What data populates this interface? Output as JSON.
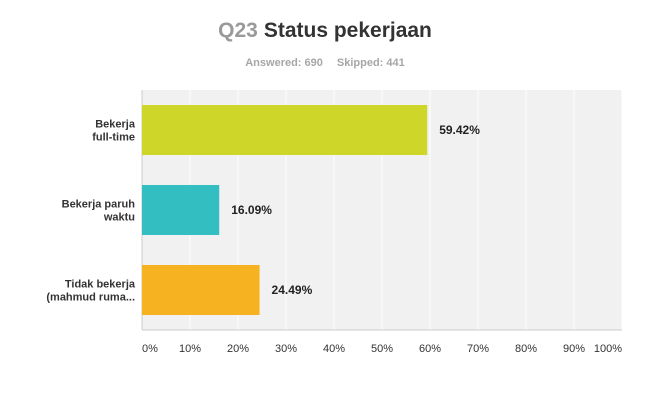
{
  "question": {
    "number": "Q23",
    "title": "Status pekerjaan"
  },
  "stats": {
    "answered": "Answered: 690",
    "skipped": "Skipped: 441"
  },
  "colors": {
    "grid_bg": "#f1f1f1",
    "gridline": "#ffffff",
    "axis": "#cccccc"
  },
  "chart_data": {
    "type": "bar",
    "orientation": "horizontal",
    "categories": [
      [
        "Bekerja",
        "full-time"
      ],
      [
        "Bekerja paruh",
        "waktu"
      ],
      [
        "Tidak bekerja",
        "(mahmud ruma..."
      ]
    ],
    "values": [
      59.42,
      16.09,
      24.49
    ],
    "value_labels": [
      "59.42%",
      "16.09%",
      "24.49%"
    ],
    "bar_colors": [
      "#cdd629",
      "#33bfc1",
      "#f6b221"
    ],
    "xlim": [
      0,
      100
    ],
    "xticks": [
      "0%",
      "10%",
      "20%",
      "30%",
      "40%",
      "50%",
      "60%",
      "70%",
      "80%",
      "90%",
      "100%"
    ],
    "grid": true,
    "legend": "none"
  }
}
